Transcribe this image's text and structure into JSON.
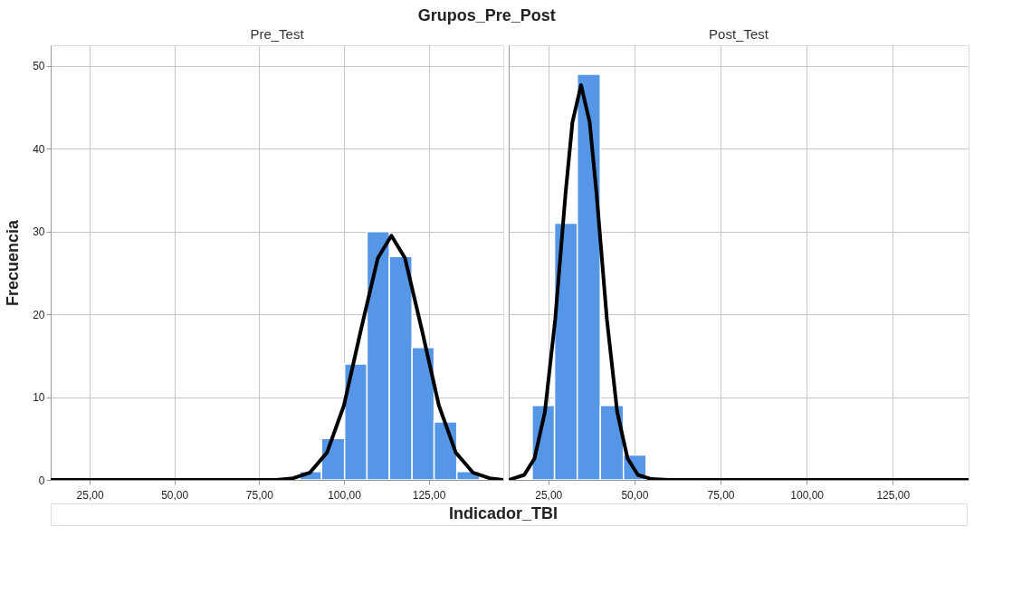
{
  "chart_data": [
    {
      "type": "histogram",
      "title": "Pre_Test",
      "annotations": [
        "Grupos_Pre_Post"
      ],
      "xlabel": "Indicador_TBI",
      "ylabel": "Frecuencia",
      "color": "#5596e6",
      "bins": [
        87.0,
        93.4,
        100.2,
        106.8,
        113.4,
        120.1,
        126.6,
        133.3,
        140.0
      ],
      "values": [
        1,
        5,
        14,
        30,
        27,
        16,
        7,
        1
      ],
      "series": [
        {
          "type": "line",
          "color": "#000000",
          "x": [
            13.5,
            80,
            85,
            90,
            95,
            100,
            105,
            110,
            114,
            118,
            123,
            128,
            133,
            138,
            143,
            147
          ],
          "values": [
            0,
            0,
            0.2,
            0.9,
            3.3,
            9.0,
            18.1,
            26.8,
            29.5,
            26.8,
            18.1,
            9.0,
            3.3,
            0.9,
            0.2,
            0
          ]
        }
      ],
      "xlim": [
        13.5,
        147
      ],
      "xticks": [
        {
          "value": 25,
          "label": "25,00"
        },
        {
          "value": 50,
          "label": "50,00"
        },
        {
          "value": 75,
          "label": "75,00"
        },
        {
          "value": 100,
          "label": "100,00"
        },
        {
          "value": 125,
          "label": "125,00"
        }
      ],
      "ylim": [
        0,
        52.5
      ],
      "yticks": [
        0,
        10,
        20,
        30,
        40,
        50
      ],
      "grid": true
    },
    {
      "type": "histogram",
      "title": "Post_Test",
      "color": "#5596e6",
      "bins": [
        20.3,
        26.8,
        33.4,
        40.1,
        46.8,
        53.4
      ],
      "values": [
        9,
        31,
        49,
        9,
        3
      ],
      "series": [
        {
          "type": "line",
          "color": "#000000",
          "x": [
            13.5,
            18,
            21,
            24,
            27,
            30,
            32,
            34.5,
            37,
            39,
            42,
            45,
            48,
            51,
            55,
            60,
            147
          ],
          "values": [
            0,
            0.6,
            2.6,
            8.2,
            19.4,
            34.6,
            43.2,
            47.7,
            43.2,
            34.6,
            19.4,
            8.2,
            2.6,
            0.6,
            0.1,
            0,
            0
          ]
        }
      ],
      "xlim": [
        13.5,
        147
      ],
      "xticks": [
        {
          "value": 25,
          "label": "25,00"
        },
        {
          "value": 50,
          "label": "50,00"
        },
        {
          "value": 75,
          "label": "75,00"
        },
        {
          "value": 100,
          "label": "100,00"
        },
        {
          "value": 125,
          "label": "125,00"
        }
      ],
      "ylim": [
        0,
        52.5
      ],
      "yticks": [
        0,
        10,
        20,
        30,
        40,
        50
      ],
      "grid": true,
      "tick_labels": "x"
    }
  ]
}
